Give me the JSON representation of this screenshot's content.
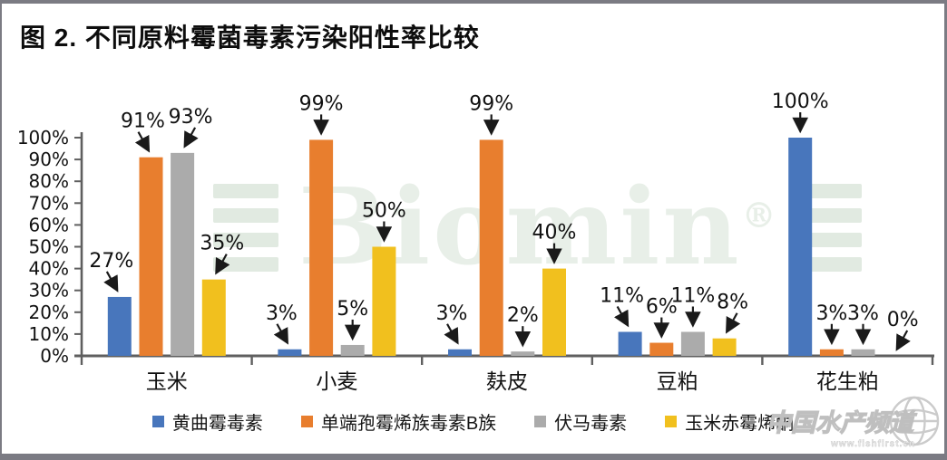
{
  "chart_data": {
    "type": "bar",
    "title": "图 2. 不同原料霉菌毒素污染阳性率比较",
    "categories": [
      "玉米",
      "小麦",
      "麸皮",
      "豆粕",
      "花生粕"
    ],
    "series": [
      {
        "name": "黄曲霉毒素",
        "color": "#4876BC",
        "values": [
          27,
          3,
          3,
          11,
          100
        ],
        "label_arrows": [
          "down-right",
          "down-right",
          "down-right",
          "down-right",
          "down"
        ]
      },
      {
        "name": "单端孢霉烯族毒素B族",
        "color": "#E87E2E",
        "values": [
          91,
          99,
          99,
          6,
          3
        ],
        "label_arrows": [
          "down-right",
          "down",
          "down",
          "down",
          "down"
        ]
      },
      {
        "name": "伏马毒素",
        "color": "#ABABAB",
        "values": [
          93,
          5,
          2,
          11,
          3
        ],
        "label_arrows": [
          "down-left",
          "down",
          "down",
          "down",
          "down"
        ]
      },
      {
        "name": "玉米赤霉烯酮",
        "color": "#F1C01E",
        "values": [
          35,
          50,
          40,
          8,
          0
        ],
        "label_arrows": [
          "down-left",
          "down",
          "down",
          "down-left",
          "down-left"
        ]
      }
    ],
    "y_axis": {
      "min": 0,
      "max": 100,
      "tick_step": 10,
      "tick_labels": [
        "0%",
        "10%",
        "20%",
        "30%",
        "40%",
        "50%",
        "60%",
        "70%",
        "80%",
        "90%",
        "100%"
      ]
    },
    "data_label_suffix": "%",
    "grid": false,
    "legend_position": "bottom"
  },
  "watermarks": {
    "brand": {
      "text": "Biomin",
      "registered": "®"
    },
    "channel": {
      "text": "中国水产频道",
      "url": "www.fishfirst.cn"
    }
  }
}
